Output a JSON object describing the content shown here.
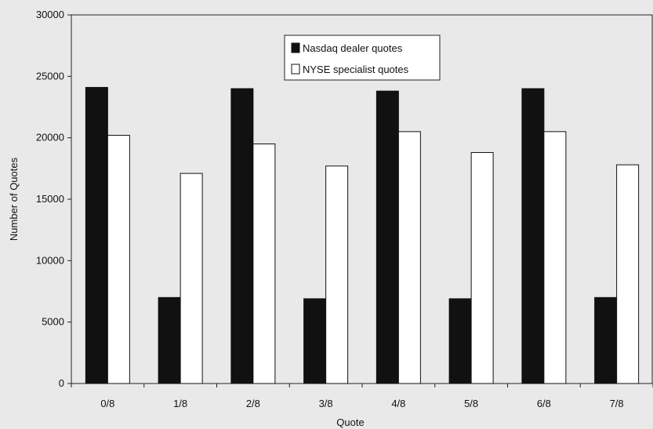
{
  "chart_data": {
    "type": "bar",
    "title": "",
    "xlabel": "Quote",
    "ylabel": "Number of Quotes",
    "categories": [
      "0/8",
      "1/8",
      "2/8",
      "3/8",
      "4/8",
      "5/8",
      "6/8",
      "7/8"
    ],
    "series": [
      {
        "name": "Nasdaq dealer quotes",
        "color": "#111111",
        "values": [
          24100,
          7000,
          24000,
          6900,
          23800,
          6900,
          24000,
          7000
        ]
      },
      {
        "name": "NYSE specialist quotes",
        "color": "#ffffff",
        "values": [
          20200,
          17100,
          19500,
          17700,
          20500,
          18800,
          20500,
          17800
        ]
      }
    ],
    "yticks": [
      0,
      5000,
      10000,
      15000,
      20000,
      25000,
      30000
    ],
    "ylim": [
      0,
      30000
    ],
    "grid": false,
    "legend_position": "top-center"
  }
}
